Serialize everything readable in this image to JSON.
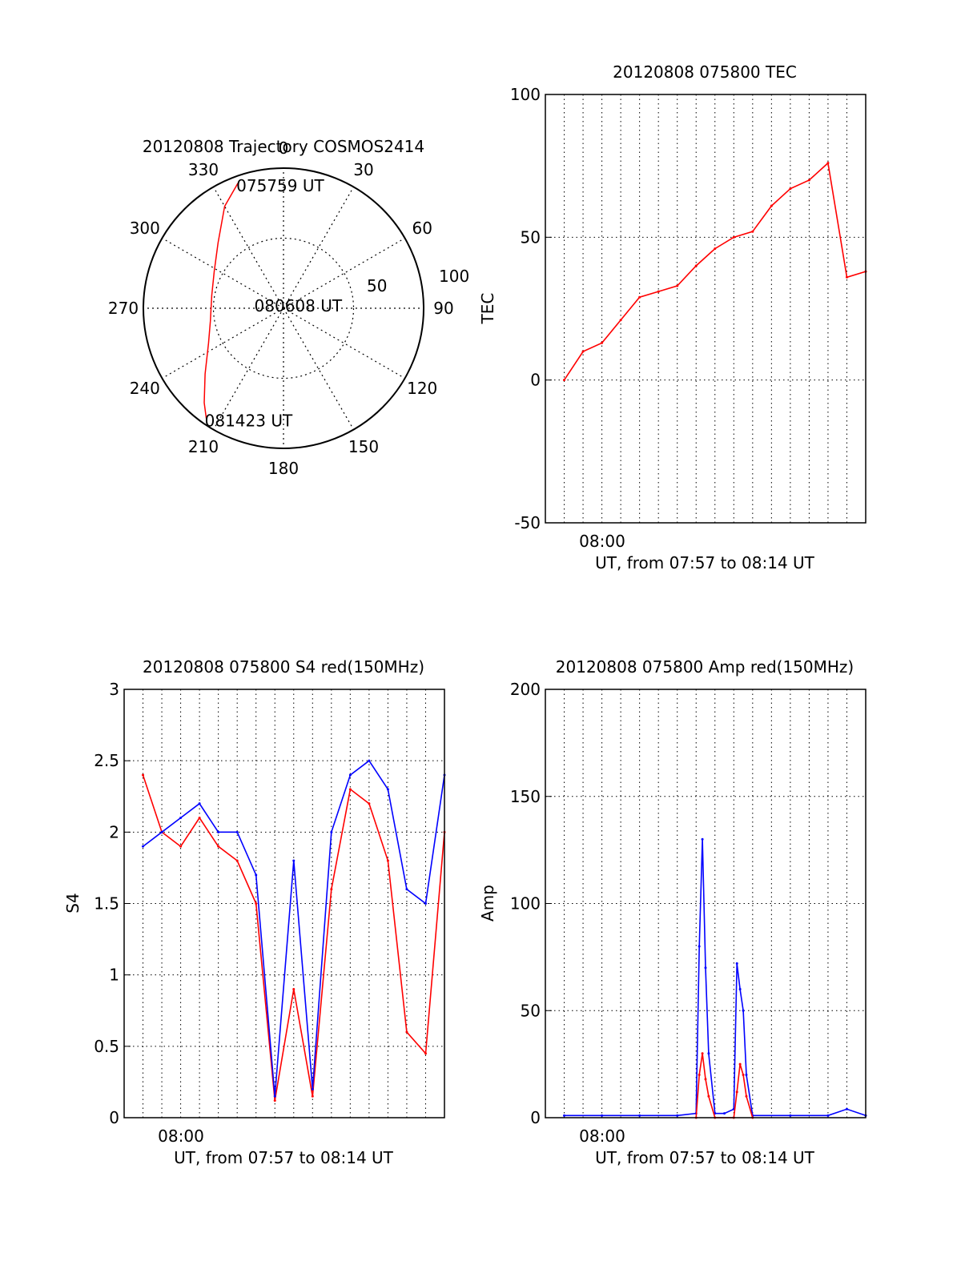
{
  "colors": {
    "red": "#ff0000",
    "blue": "#0000ff",
    "axis": "#000000",
    "grid": "#000000"
  },
  "chart_data": [
    {
      "type": "polar-trajectory",
      "title": "20120808 Trajectory COSMOS2414",
      "angle_labels": [
        "0",
        "30",
        "60",
        "90",
        "120",
        "150",
        "180",
        "210",
        "240",
        "270",
        "300",
        "330"
      ],
      "radius_labels": [
        "50",
        "100"
      ],
      "rlim": [
        0,
        100
      ],
      "trajectory": [
        {
          "az": 340,
          "r": 95
        },
        {
          "az": 330,
          "r": 84
        },
        {
          "az": 315,
          "r": 66
        },
        {
          "az": 298,
          "r": 56
        },
        {
          "az": 280,
          "r": 52
        },
        {
          "az": 260,
          "r": 53
        },
        {
          "az": 245,
          "r": 59
        },
        {
          "az": 230,
          "r": 73
        },
        {
          "az": 220,
          "r": 88
        },
        {
          "az": 215,
          "r": 96
        }
      ],
      "annotations": [
        {
          "text": "075759 UT",
          "az": 340,
          "r": 95
        },
        {
          "text": "080608 UT",
          "az": 280,
          "r": 20
        },
        {
          "text": "081423 UT",
          "az": 215,
          "r": 96
        }
      ],
      "grid": true
    },
    {
      "type": "line",
      "title": "20120808 075800 TEC",
      "xlabel": "UT, from 07:57 to 08:14 UT",
      "ylabel": "TEC",
      "x_tick_labels": [
        "08:00"
      ],
      "y_ticks": [
        -50,
        0,
        50,
        100
      ],
      "xlim": [
        "07:57",
        "08:14"
      ],
      "ylim": [
        -50,
        100
      ],
      "grid": true,
      "series": [
        {
          "color": "#ff0000",
          "x": [
            "07:58",
            "07:59",
            "08:00",
            "08:01",
            "08:02",
            "08:03",
            "08:04",
            "08:05",
            "08:06",
            "08:07",
            "08:08",
            "08:09",
            "08:10",
            "08:11",
            "08:12",
            "08:13",
            "08:14"
          ],
          "values": [
            0,
            10,
            13,
            21,
            29,
            31,
            33,
            40,
            46,
            50,
            52,
            61,
            67,
            70,
            76,
            36,
            38
          ]
        }
      ]
    },
    {
      "type": "line",
      "title": "20120808 075800 S4 red(150MHz)",
      "xlabel": "UT, from 07:57 to 08:14 UT",
      "ylabel": "S4",
      "x_tick_labels": [
        "08:00"
      ],
      "y_ticks": [
        0,
        0.5,
        1,
        1.5,
        2,
        2.5,
        3
      ],
      "xlim": [
        "07:57",
        "08:14"
      ],
      "ylim": [
        0,
        3
      ],
      "grid": true,
      "series": [
        {
          "color": "#ff0000",
          "x": [
            "07:58",
            "07:59",
            "08:00",
            "08:01",
            "08:02",
            "08:03",
            "08:04",
            "08:05",
            "08:06",
            "08:07",
            "08:08",
            "08:09",
            "08:10",
            "08:11",
            "08:12",
            "08:13",
            "08:14"
          ],
          "values": [
            2.4,
            2.0,
            1.9,
            2.1,
            1.9,
            1.8,
            1.5,
            0.12,
            0.9,
            0.15,
            1.6,
            2.3,
            2.2,
            1.8,
            0.6,
            0.45,
            2.0
          ]
        },
        {
          "color": "#0000ff",
          "x": [
            "07:58",
            "07:59",
            "08:00",
            "08:01",
            "08:02",
            "08:03",
            "08:04",
            "08:05",
            "08:06",
            "08:07",
            "08:08",
            "08:09",
            "08:10",
            "08:11",
            "08:12",
            "08:13",
            "08:14"
          ],
          "values": [
            1.9,
            2.0,
            2.1,
            2.2,
            2.0,
            2.0,
            1.7,
            0.15,
            1.8,
            0.2,
            2.0,
            2.4,
            2.5,
            2.3,
            1.6,
            1.5,
            2.4
          ]
        }
      ]
    },
    {
      "type": "line",
      "title": "20120808 075800 Amp red(150MHz)",
      "xlabel": "UT, from 07:57 to 08:14 UT",
      "ylabel": "Amp",
      "x_tick_labels": [
        "08:00"
      ],
      "y_ticks": [
        0,
        50,
        100,
        150,
        200
      ],
      "xlim": [
        "07:57",
        "08:14"
      ],
      "ylim": [
        0,
        200
      ],
      "grid": true,
      "series": [
        {
          "color": "#0000ff",
          "x": [
            "07:58",
            "08:00",
            "08:02",
            "08:04",
            "08:05",
            "08:05:10",
            "08:05:20",
            "08:05:30",
            "08:05:40",
            "08:06",
            "08:06:30",
            "08:07",
            "08:07:10",
            "08:07:20",
            "08:07:30",
            "08:07:40",
            "08:08",
            "08:10",
            "08:12",
            "08:13",
            "08:14"
          ],
          "values": [
            1,
            1,
            1,
            1,
            2,
            80,
            130,
            70,
            30,
            2,
            2,
            4,
            72,
            60,
            50,
            20,
            1,
            1,
            1,
            4,
            1
          ]
        },
        {
          "color": "#ff0000",
          "x": [
            "08:05",
            "08:05:10",
            "08:05:20",
            "08:05:30",
            "08:05:40",
            "08:06",
            "08:07",
            "08:07:10",
            "08:07:20",
            "08:07:30",
            "08:07:40",
            "08:08"
          ],
          "values": [
            0,
            20,
            30,
            18,
            10,
            0,
            0,
            12,
            25,
            20,
            10,
            0
          ]
        }
      ]
    }
  ]
}
